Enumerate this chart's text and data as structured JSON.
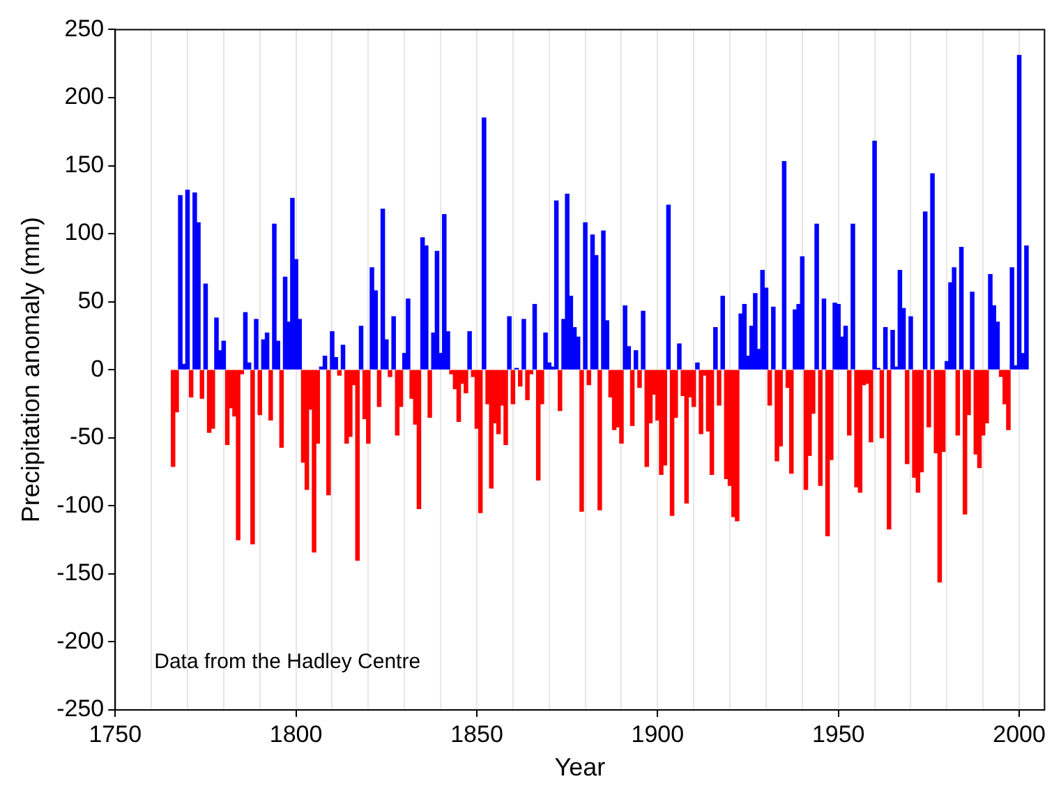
{
  "chart_data": {
    "type": "bar",
    "xlabel": "Year",
    "ylabel": "Precipitation anomaly (mm)",
    "annotations": [
      "Data from the Hadley Centre"
    ],
    "xlim": [
      1750,
      2007
    ],
    "xticks": [
      1750,
      {
        "value": 1760,
        "label": null
      },
      {
        "value": 1770,
        "label": null
      },
      {
        "value": 1780,
        "label": null
      },
      {
        "value": 1790,
        "label": null
      },
      1800,
      {
        "value": 1810,
        "label": null
      },
      {
        "value": 1820,
        "label": null
      },
      {
        "value": 1830,
        "label": null
      },
      {
        "value": 1840,
        "label": null
      },
      1850,
      {
        "value": 1860,
        "label": null
      },
      {
        "value": 1870,
        "label": null
      },
      {
        "value": 1880,
        "label": null
      },
      {
        "value": 1890,
        "label": null
      },
      1900,
      {
        "value": 1910,
        "label": null
      },
      {
        "value": 1920,
        "label": null
      },
      {
        "value": 1930,
        "label": null
      },
      {
        "value": 1940,
        "label": null
      },
      1950,
      {
        "value": 1960,
        "label": null
      },
      {
        "value": 1970,
        "label": null
      },
      {
        "value": 1980,
        "label": null
      },
      {
        "value": 1990,
        "label": null
      },
      2000
    ],
    "ylim": [
      -250,
      250
    ],
    "yticks": [
      -250,
      -200,
      -150,
      -100,
      -50,
      0,
      50,
      100,
      150,
      200,
      250
    ],
    "grid": "x",
    "legend": false,
    "x": [
      1766,
      1767,
      1768,
      1769,
      1770,
      1771,
      1772,
      1773,
      1774,
      1775,
      1776,
      1777,
      1778,
      1779,
      1780,
      1781,
      1782,
      1783,
      1784,
      1785,
      1786,
      1787,
      1788,
      1789,
      1790,
      1791,
      1792,
      1793,
      1794,
      1795,
      1796,
      1797,
      1798,
      1799,
      1800,
      1801,
      1802,
      1803,
      1804,
      1805,
      1806,
      1807,
      1808,
      1809,
      1810,
      1811,
      1812,
      1813,
      1814,
      1815,
      1816,
      1817,
      1818,
      1819,
      1820,
      1821,
      1822,
      1823,
      1824,
      1825,
      1826,
      1827,
      1828,
      1829,
      1830,
      1831,
      1832,
      1833,
      1834,
      1835,
      1836,
      1837,
      1838,
      1839,
      1840,
      1841,
      1842,
      1843,
      1844,
      1845,
      1846,
      1847,
      1848,
      1849,
      1850,
      1851,
      1852,
      1853,
      1854,
      1855,
      1856,
      1857,
      1858,
      1859,
      1860,
      1861,
      1862,
      1863,
      1864,
      1865,
      1866,
      1867,
      1868,
      1869,
      1870,
      1871,
      1872,
      1873,
      1874,
      1875,
      1876,
      1877,
      1878,
      1879,
      1880,
      1881,
      1882,
      1883,
      1884,
      1885,
      1886,
      1887,
      1888,
      1889,
      1890,
      1891,
      1892,
      1893,
      1894,
      1895,
      1896,
      1897,
      1898,
      1899,
      1900,
      1901,
      1902,
      1903,
      1904,
      1905,
      1906,
      1907,
      1908,
      1909,
      1910,
      1911,
      1912,
      1913,
      1914,
      1915,
      1916,
      1917,
      1918,
      1919,
      1920,
      1921,
      1922,
      1923,
      1924,
      1925,
      1926,
      1927,
      1928,
      1929,
      1930,
      1931,
      1932,
      1933,
      1934,
      1935,
      1936,
      1937,
      1938,
      1939,
      1940,
      1941,
      1942,
      1943,
      1944,
      1945,
      1946,
      1947,
      1948,
      1949,
      1950,
      1951,
      1952,
      1953,
      1954,
      1955,
      1956,
      1957,
      1958,
      1959,
      1960,
      1961,
      1962,
      1963,
      1964,
      1965,
      1966,
      1967,
      1968,
      1969,
      1970,
      1971,
      1972,
      1973,
      1974,
      1975,
      1976,
      1977,
      1978,
      1979,
      1980,
      1981,
      1982,
      1983,
      1984,
      1985,
      1986,
      1987,
      1988,
      1989,
      1990,
      1991,
      1992,
      1993,
      1994,
      1995,
      1996,
      1997,
      1998,
      1999,
      2000,
      2001,
      2002
    ],
    "values": [
      -71,
      -31,
      128,
      4,
      132,
      -20,
      130,
      108,
      -21,
      63,
      -46,
      -43,
      38,
      14,
      21,
      -55,
      -28,
      -34,
      -125,
      -3,
      42,
      5,
      -128,
      37,
      -33,
      22,
      27,
      -37,
      107,
      21,
      -57,
      68,
      35,
      126,
      81,
      37,
      -68,
      -88,
      -29,
      -134,
      -54,
      2,
      10,
      -92,
      28,
      9,
      -4,
      18,
      -54,
      -49,
      -11,
      -140,
      32,
      -36,
      -54,
      75,
      58,
      -27,
      118,
      22,
      -5,
      39,
      -48,
      -27,
      12,
      52,
      -21,
      -40,
      -102,
      97,
      91,
      -35,
      27,
      87,
      12,
      114,
      28,
      -3,
      -14,
      -38,
      -10,
      -17,
      28,
      -5,
      -43,
      -105,
      185,
      -25,
      -87,
      -39,
      -47,
      -26,
      -55,
      39,
      -25,
      1,
      -12,
      37,
      -22,
      -3,
      48,
      -81,
      -25,
      27,
      5,
      2,
      124,
      -30,
      37,
      129,
      54,
      31,
      24,
      -104,
      108,
      -11,
      99,
      84,
      -103,
      102,
      36,
      -20,
      -44,
      -42,
      -54,
      47,
      17,
      -41,
      14,
      -13,
      43,
      -71,
      -39,
      -18,
      -37,
      -77,
      -70,
      121,
      -107,
      -35,
      19,
      -19,
      -98,
      -20,
      -27,
      5,
      -47,
      -4,
      -45,
      -77,
      31,
      -26,
      54,
      -80,
      -85,
      -108,
      -111,
      41,
      48,
      10,
      32,
      56,
      15,
      73,
      60,
      -26,
      46,
      -67,
      -56,
      153,
      -13,
      -76,
      44,
      48,
      83,
      -88,
      -63,
      -32,
      107,
      -85,
      52,
      -122,
      -66,
      49,
      48,
      24,
      32,
      -48,
      107,
      -86,
      -90,
      -11,
      -10,
      -53,
      168,
      1,
      -50,
      31,
      -117,
      29,
      2,
      73,
      45,
      -69,
      39,
      -79,
      -90,
      -75,
      116,
      -42,
      144,
      -61,
      -156,
      -60,
      6,
      64,
      75,
      -48,
      90,
      -106,
      -33,
      57,
      -62,
      -72,
      -48,
      -39,
      70,
      47,
      35,
      -5,
      -25,
      -44,
      75,
      3,
      231,
      12,
      91
    ],
    "colors": [
      "#ff0000",
      "#ff0000",
      "#0000ff",
      "#0000ff",
      "#0000ff",
      "#ff0000",
      "#0000ff",
      "#0000ff",
      "#ff0000",
      "#0000ff",
      "#ff0000",
      "#ff0000",
      "#0000ff",
      "#0000ff",
      "#0000ff",
      "#ff0000",
      "#ff0000",
      "#ff0000",
      "#ff0000",
      "#ff0000",
      "#0000ff",
      "#0000ff",
      "#ff0000",
      "#0000ff",
      "#ff0000",
      "#0000ff",
      "#0000ff",
      "#ff0000",
      "#0000ff",
      "#0000ff",
      "#ff0000",
      "#0000ff",
      "#0000ff",
      "#0000ff",
      "#0000ff",
      "#0000ff",
      "#ff0000",
      "#ff0000",
      "#ff0000",
      "#ff0000",
      "#ff0000",
      "#0000ff",
      "#0000ff",
      "#ff0000",
      "#0000ff",
      "#0000ff",
      "#ff0000",
      "#0000ff",
      "#ff0000",
      "#ff0000",
      "#ff0000",
      "#ff0000",
      "#0000ff",
      "#ff0000",
      "#ff0000",
      "#0000ff",
      "#0000ff",
      "#ff0000",
      "#0000ff",
      "#0000ff",
      "#ff0000",
      "#0000ff",
      "#ff0000",
      "#ff0000",
      "#0000ff",
      "#0000ff",
      "#ff0000",
      "#ff0000",
      "#ff0000",
      "#0000ff",
      "#0000ff",
      "#ff0000",
      "#0000ff",
      "#0000ff",
      "#0000ff",
      "#0000ff",
      "#0000ff",
      "#ff0000",
      "#ff0000",
      "#ff0000",
      "#ff0000",
      "#ff0000",
      "#0000ff",
      "#ff0000",
      "#ff0000",
      "#ff0000",
      "#0000ff",
      "#ff0000",
      "#ff0000",
      "#ff0000",
      "#ff0000",
      "#ff0000",
      "#ff0000",
      "#0000ff",
      "#ff0000",
      "#0000ff",
      "#ff0000",
      "#0000ff",
      "#ff0000",
      "#ff0000",
      "#0000ff",
      "#ff0000",
      "#ff0000",
      "#0000ff",
      "#0000ff",
      "#0000ff",
      "#0000ff",
      "#ff0000",
      "#0000ff",
      "#0000ff",
      "#0000ff",
      "#0000ff",
      "#0000ff",
      "#ff0000",
      "#0000ff",
      "#ff0000",
      "#0000ff",
      "#0000ff",
      "#ff0000",
      "#0000ff",
      "#0000ff",
      "#ff0000",
      "#ff0000",
      "#ff0000",
      "#ff0000",
      "#0000ff",
      "#0000ff",
      "#ff0000",
      "#0000ff",
      "#ff0000",
      "#0000ff",
      "#ff0000",
      "#ff0000",
      "#ff0000",
      "#ff0000",
      "#ff0000",
      "#ff0000",
      "#0000ff",
      "#ff0000",
      "#ff0000",
      "#0000ff",
      "#ff0000",
      "#ff0000",
      "#ff0000",
      "#ff0000",
      "#0000ff",
      "#ff0000",
      "#ff0000",
      "#ff0000",
      "#ff0000",
      "#0000ff",
      "#ff0000",
      "#0000ff",
      "#ff0000",
      "#ff0000",
      "#ff0000",
      "#ff0000",
      "#0000ff",
      "#0000ff",
      "#0000ff",
      "#0000ff",
      "#0000ff",
      "#0000ff",
      "#0000ff",
      "#0000ff",
      "#ff0000",
      "#0000ff",
      "#ff0000",
      "#ff0000",
      "#0000ff",
      "#ff0000",
      "#ff0000",
      "#0000ff",
      "#0000ff",
      "#0000ff",
      "#ff0000",
      "#ff0000",
      "#ff0000",
      "#0000ff",
      "#ff0000",
      "#0000ff",
      "#ff0000",
      "#ff0000",
      "#0000ff",
      "#0000ff",
      "#0000ff",
      "#0000ff",
      "#ff0000",
      "#0000ff",
      "#ff0000",
      "#ff0000",
      "#ff0000",
      "#ff0000",
      "#ff0000",
      "#0000ff",
      "#0000ff",
      "#ff0000",
      "#0000ff",
      "#ff0000",
      "#0000ff",
      "#0000ff",
      "#0000ff",
      "#0000ff",
      "#ff0000",
      "#0000ff",
      "#ff0000",
      "#ff0000",
      "#ff0000",
      "#0000ff",
      "#ff0000",
      "#0000ff",
      "#ff0000",
      "#ff0000",
      "#ff0000",
      "#0000ff",
      "#0000ff",
      "#0000ff",
      "#ff0000",
      "#0000ff",
      "#ff0000",
      "#ff0000",
      "#0000ff",
      "#ff0000",
      "#ff0000",
      "#ff0000",
      "#ff0000",
      "#0000ff",
      "#0000ff",
      "#0000ff",
      "#ff0000",
      "#ff0000",
      "#ff0000",
      "#0000ff",
      "#0000ff",
      "#0000ff",
      "#0000ff",
      "#0000ff"
    ]
  }
}
